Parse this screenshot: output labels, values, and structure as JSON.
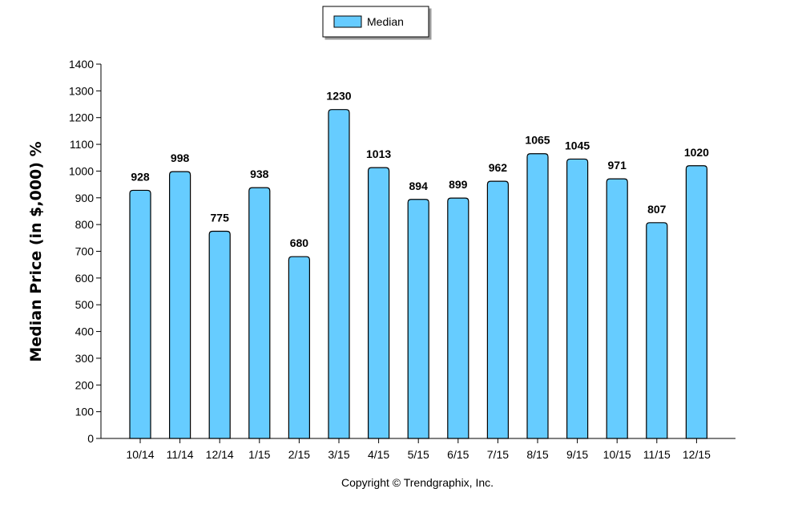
{
  "legend": {
    "label": "Median"
  },
  "footer": {
    "copyright": "Copyright © Trendgraphix, Inc."
  },
  "colors": {
    "bar_fill": "#66ccff",
    "bar_stroke": "#000000",
    "axis": "#000000"
  },
  "chart_data": {
    "type": "bar",
    "categories": [
      "10/14",
      "11/14",
      "12/14",
      "1/15",
      "2/15",
      "3/15",
      "4/15",
      "5/15",
      "6/15",
      "7/15",
      "8/15",
      "9/15",
      "10/15",
      "11/15",
      "12/15"
    ],
    "series": [
      {
        "name": "Median",
        "values": [
          928,
          998,
          775,
          938,
          680,
          1230,
          1013,
          894,
          899,
          962,
          1065,
          1045,
          971,
          807,
          1020
        ]
      }
    ],
    "ylabel": "Median Price (in $,000) %",
    "xlabel": "",
    "ylim": [
      0,
      1400
    ],
    "yticks": [
      0,
      100,
      200,
      300,
      400,
      500,
      600,
      700,
      800,
      900,
      1000,
      1100,
      1200,
      1300,
      1400
    ],
    "data_labels": true,
    "grid": false,
    "legend_position": "top-center"
  }
}
